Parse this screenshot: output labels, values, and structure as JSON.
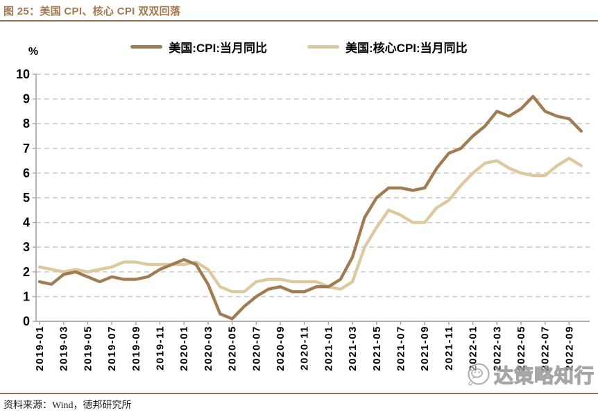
{
  "figure": {
    "title": "图 25：美国 CPI、核心 CPI 双双回落",
    "unit_label": "%",
    "source": "资料来源：Wind，德邦研究所",
    "watermark": "达策略知行"
  },
  "colors": {
    "cpi_line": "#a17c52",
    "core_cpi_line": "#dcc99e",
    "accent_rule": "#96704f",
    "grid": "#cdcdcd",
    "axis": "#a8a8a8",
    "label_text": "#000000",
    "watermark_gray": "#979797"
  },
  "chart_data": {
    "type": "line",
    "title": "",
    "ylabel": "%",
    "ylim": [
      0,
      10
    ],
    "yticks": [
      0,
      1,
      2,
      3,
      4,
      5,
      6,
      7,
      8,
      9,
      10
    ],
    "grid": "horizontal-dashed",
    "legend_position": "top-center",
    "x_tick_step": 2,
    "x": [
      "2019-01",
      "2019-02",
      "2019-03",
      "2019-04",
      "2019-05",
      "2019-06",
      "2019-07",
      "2019-08",
      "2019-09",
      "2019-10",
      "2019-11",
      "2019-12",
      "2020-01",
      "2020-02",
      "2020-03",
      "2020-04",
      "2020-05",
      "2020-06",
      "2020-07",
      "2020-08",
      "2020-09",
      "2020-10",
      "2020-11",
      "2020-12",
      "2021-01",
      "2021-02",
      "2021-03",
      "2021-04",
      "2021-05",
      "2021-06",
      "2021-07",
      "2021-08",
      "2021-09",
      "2021-10",
      "2021-11",
      "2021-12",
      "2022-01",
      "2022-02",
      "2022-03",
      "2022-04",
      "2022-05",
      "2022-06",
      "2022-07",
      "2022-08",
      "2022-09",
      "2022-10"
    ],
    "series": [
      {
        "name": "美国:CPI:当月同比",
        "color": "#a17c52",
        "values": [
          1.6,
          1.5,
          1.9,
          2.0,
          1.8,
          1.6,
          1.8,
          1.7,
          1.7,
          1.8,
          2.1,
          2.3,
          2.5,
          2.3,
          1.5,
          0.3,
          0.1,
          0.6,
          1.0,
          1.3,
          1.4,
          1.2,
          1.2,
          1.4,
          1.4,
          1.7,
          2.6,
          4.2,
          5.0,
          5.4,
          5.4,
          5.3,
          5.4,
          6.2,
          6.8,
          7.0,
          7.5,
          7.9,
          8.5,
          8.3,
          8.6,
          9.1,
          8.5,
          8.3,
          8.2,
          7.7
        ]
      },
      {
        "name": "美国:核心CPI:当月同比",
        "color": "#dcc99e",
        "values": [
          2.2,
          2.1,
          2.0,
          2.1,
          2.0,
          2.1,
          2.2,
          2.4,
          2.4,
          2.3,
          2.3,
          2.3,
          2.3,
          2.4,
          2.1,
          1.4,
          1.2,
          1.2,
          1.6,
          1.7,
          1.7,
          1.6,
          1.6,
          1.6,
          1.4,
          1.3,
          1.6,
          3.0,
          3.8,
          4.5,
          4.3,
          4.0,
          4.0,
          4.6,
          4.9,
          5.5,
          6.0,
          6.4,
          6.5,
          6.2,
          6.0,
          5.9,
          5.9,
          6.3,
          6.6,
          6.3
        ]
      }
    ]
  }
}
